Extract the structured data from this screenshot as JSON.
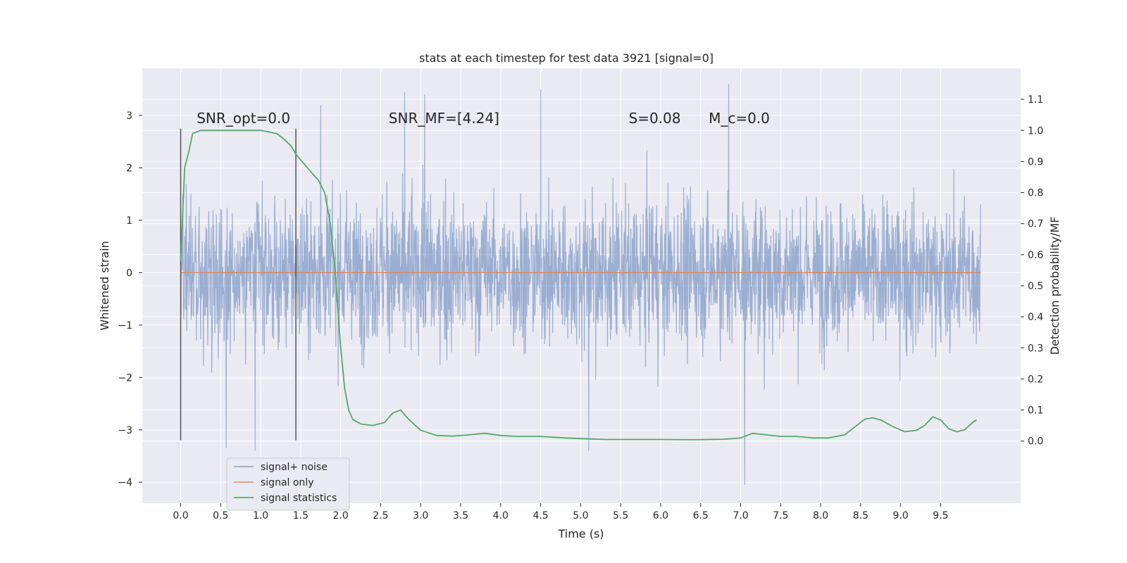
{
  "chart_data": {
    "type": "line",
    "title": "stats at each timestep for test data 3921 [signal=0]",
    "xlabel": "Time (s)",
    "ylabel": "Whitened strain",
    "ylabel_right": "Detection probability/MF",
    "xlim": [
      -0.48,
      10.5
    ],
    "ylim": [
      -4.4,
      3.9
    ],
    "ylim_right": [
      -0.2,
      1.2
    ],
    "x_ticks": [
      "0.0",
      "0.5",
      "1.0",
      "1.5",
      "2.0",
      "2.5",
      "3.0",
      "3.5",
      "4.0",
      "4.5",
      "5.0",
      "5.5",
      "6.0",
      "6.5",
      "7.0",
      "7.5",
      "8.0",
      "8.5",
      "9.0",
      "9.5"
    ],
    "y_ticks": [
      "3",
      "2",
      "1",
      "0",
      "−1",
      "−2",
      "−3",
      "−4"
    ],
    "y_ticks_right": [
      "1.1",
      "1.0",
      "0.9",
      "0.8",
      "0.7",
      "0.6",
      "0.5",
      "0.4",
      "0.3",
      "0.2",
      "0.1",
      "0.0"
    ],
    "grid": true,
    "legend_position": "lower-left",
    "colors": {
      "background": "#eaeaf2",
      "grid": "#ffffff",
      "noise": "#4c72b0",
      "signal_only": "#dd8452",
      "statistics": "#55a868",
      "markers": "#555555"
    },
    "annotations": [
      {
        "text": "SNR_opt=0.0",
        "x": 0.2,
        "y": 2.85
      },
      {
        "text": "SNR_MF=[4.24]",
        "x": 2.6,
        "y": 2.85
      },
      {
        "text": "S=0.08",
        "x": 5.6,
        "y": 2.85
      },
      {
        "text": "M_c=0.0",
        "x": 6.6,
        "y": 2.85
      }
    ],
    "markers": [
      {
        "x": 0.0,
        "ymin": -3.2,
        "ymax": 2.75
      },
      {
        "x": 1.44,
        "ymin": -3.2,
        "ymax": 2.75
      }
    ],
    "series": [
      {
        "name": "signal+ noise",
        "axis": "left",
        "x_range": [
          0.0,
          10.0
        ],
        "envelope": {
          "typical": 1.6,
          "max": 3.6,
          "min": -4.1
        },
        "notable_peaks": [
          {
            "x": 1.75,
            "y": 3.2
          },
          {
            "x": 2.8,
            "y": 3.45
          },
          {
            "x": 3.05,
            "y": 3.4
          },
          {
            "x": 4.5,
            "y": 3.5
          },
          {
            "x": 6.85,
            "y": 3.6
          },
          {
            "x": 7.05,
            "y": -4.05
          },
          {
            "x": 0.93,
            "y": -3.4
          },
          {
            "x": 0.57,
            "y": -3.35
          },
          {
            "x": 5.1,
            "y": -3.4
          }
        ]
      },
      {
        "name": "signal only",
        "axis": "left",
        "x": [
          0.0,
          10.0
        ],
        "y": [
          0.0,
          0.0
        ]
      },
      {
        "name": "signal statistics",
        "axis": "right",
        "x": [
          0.0,
          0.05,
          0.1,
          0.15,
          0.25,
          0.5,
          1.0,
          1.2,
          1.3,
          1.38,
          1.45,
          1.55,
          1.65,
          1.72,
          1.8,
          1.87,
          1.93,
          2.0,
          2.05,
          2.1,
          2.15,
          2.25,
          2.4,
          2.55,
          2.65,
          2.75,
          2.85,
          3.0,
          3.2,
          3.4,
          3.6,
          3.8,
          4.0,
          4.2,
          4.5,
          4.8,
          5.0,
          5.3,
          5.6,
          6.0,
          6.4,
          6.8,
          7.0,
          7.15,
          7.25,
          7.5,
          7.7,
          7.9,
          8.1,
          8.3,
          8.45,
          8.55,
          8.65,
          8.75,
          8.9,
          9.05,
          9.2,
          9.3,
          9.4,
          9.5,
          9.6,
          9.7,
          9.8,
          9.9,
          9.95
        ],
        "y": [
          0.58,
          0.88,
          0.93,
          0.99,
          1.0,
          1.0,
          1.0,
          0.99,
          0.97,
          0.95,
          0.92,
          0.89,
          0.86,
          0.84,
          0.8,
          0.7,
          0.55,
          0.3,
          0.17,
          0.1,
          0.07,
          0.055,
          0.05,
          0.06,
          0.09,
          0.1,
          0.07,
          0.035,
          0.018,
          0.016,
          0.02,
          0.025,
          0.018,
          0.015,
          0.015,
          0.01,
          0.008,
          0.005,
          0.005,
          0.005,
          0.004,
          0.006,
          0.01,
          0.025,
          0.022,
          0.015,
          0.015,
          0.01,
          0.01,
          0.02,
          0.05,
          0.07,
          0.075,
          0.068,
          0.047,
          0.03,
          0.035,
          0.05,
          0.078,
          0.068,
          0.04,
          0.03,
          0.036,
          0.06,
          0.068
        ]
      }
    ]
  }
}
